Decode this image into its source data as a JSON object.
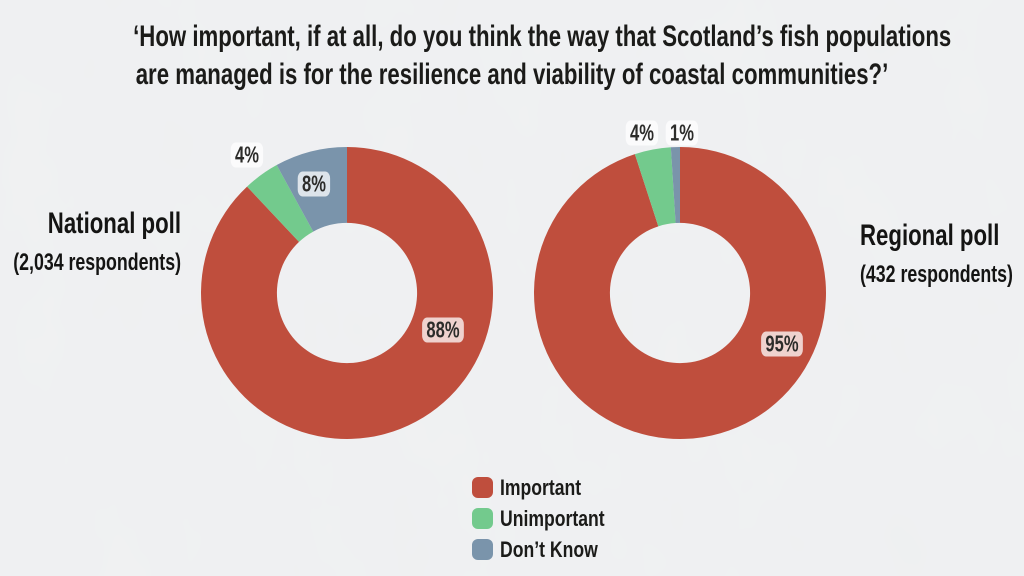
{
  "title": {
    "line1": "‘How important, if at all, do you think the way that Scotland’s fish populations",
    "line2": "are managed is for the resilience and viability of coastal communities?’"
  },
  "chart_data": [
    {
      "type": "pie",
      "variant": "donut",
      "title": "National poll",
      "subtitle": "(2,034 respondents)",
      "categories": [
        "Important",
        "Unimportant",
        "Don't Know"
      ],
      "values": [
        88,
        4,
        8
      ],
      "labels": [
        "88%",
        "4%",
        "8%"
      ],
      "colors": [
        "#bf4e3d",
        "#73ca8d",
        "#7a94ab"
      ],
      "start_angle_deg": 0,
      "direction": "clockwise",
      "inner_radius_ratio": 0.48
    },
    {
      "type": "pie",
      "variant": "donut",
      "title": "Regional poll",
      "subtitle": "(432 respondents)",
      "categories": [
        "Important",
        "Unimportant",
        "Don't Know"
      ],
      "values": [
        95,
        4,
        1
      ],
      "labels": [
        "95%",
        "4%",
        "1%"
      ],
      "colors": [
        "#bf4e3d",
        "#73ca8d",
        "#7a94ab"
      ],
      "start_angle_deg": 0,
      "direction": "clockwise",
      "inner_radius_ratio": 0.48
    }
  ],
  "legend": {
    "position": "bottom-center",
    "items": [
      {
        "label": "Important",
        "color": "#bf4e3d"
      },
      {
        "label": "Unimportant",
        "color": "#73ca8d"
      },
      {
        "label": "Don’t Know",
        "color": "#7a94ab"
      }
    ]
  },
  "style": {
    "background": "#f0f1f2",
    "text_color": "#1b1b19",
    "label_pill_background": "rgba(255,255,255,0.75)"
  }
}
